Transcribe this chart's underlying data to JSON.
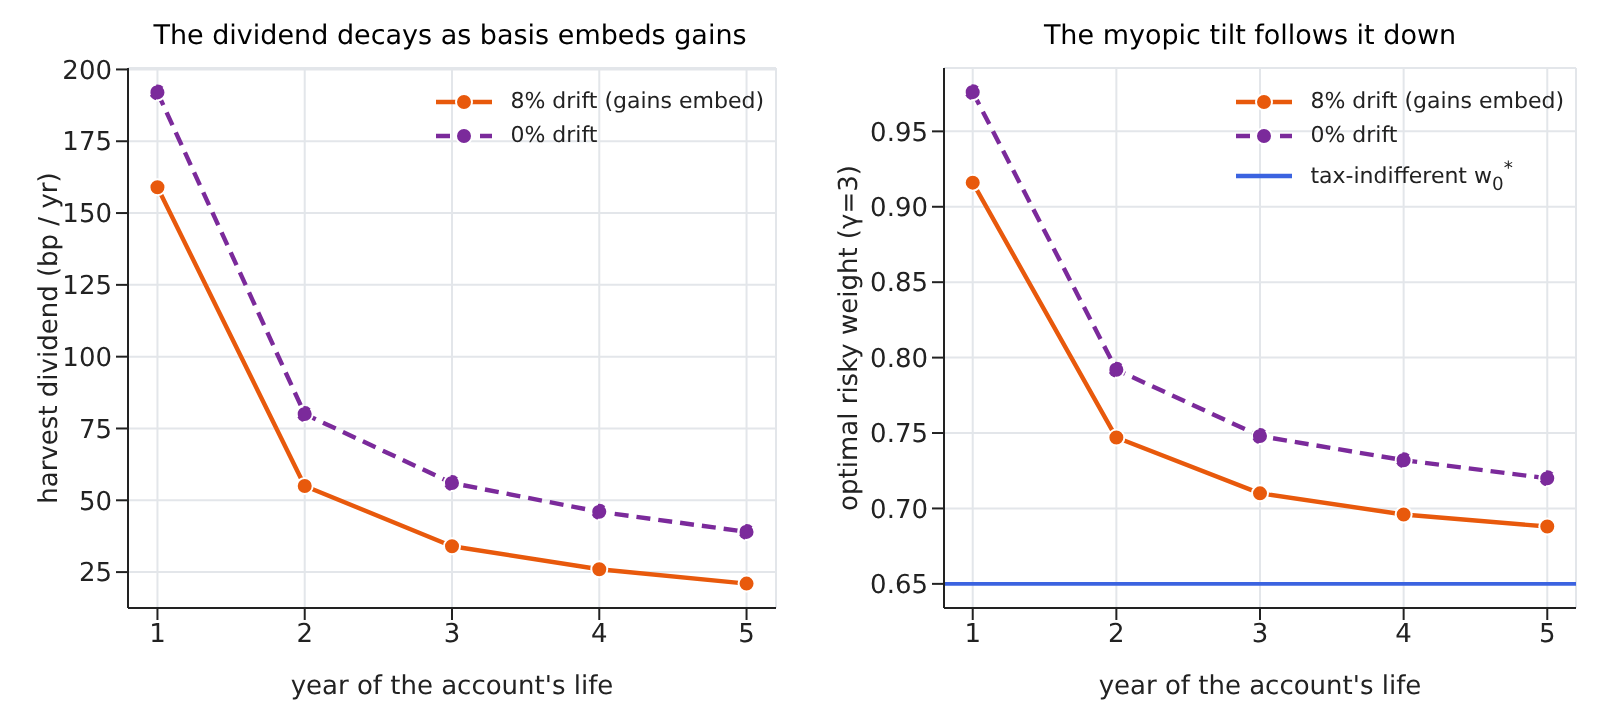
{
  "chart_data": [
    {
      "type": "line",
      "title": "The dividend decays as basis embeds gains",
      "xlabel": "year of the account's life",
      "ylabel": "harvest dividend (bp / yr)",
      "x": [
        1,
        2,
        3,
        4,
        5
      ],
      "xlim": [
        0.8,
        5.2
      ],
      "xticks": [
        1,
        2,
        3,
        4,
        5
      ],
      "ylim": [
        12.5,
        200.5
      ],
      "yticks": [
        25,
        50,
        75,
        100,
        125,
        150,
        175,
        200
      ],
      "grid": true,
      "legend": "top right",
      "marker": "circle",
      "series": [
        {
          "name": "8% drift (gains embed)",
          "color": "#e8590c",
          "line_style": "solid",
          "values": [
            159,
            55,
            34,
            26,
            21
          ]
        },
        {
          "name": "0% drift",
          "color": "#7b2a9b",
          "line_style": "dashed",
          "values": [
            192,
            80,
            56,
            46,
            39
          ]
        }
      ]
    },
    {
      "type": "line",
      "title": "The myopic tilt follows it down",
      "xlabel": "year of the account's life",
      "ylabel": "optimal risky weight (γ=3)",
      "x": [
        1,
        2,
        3,
        4,
        5
      ],
      "xlim": [
        0.8,
        5.2
      ],
      "xticks": [
        1,
        2,
        3,
        4,
        5
      ],
      "ylim": [
        0.634,
        0.992
      ],
      "yticks": [
        0.65,
        {
          "value": 0.7,
          "label": "0.70"
        },
        0.75,
        {
          "value": 0.8,
          "label": "0.80"
        },
        0.85,
        {
          "value": 0.9,
          "label": "0.90"
        },
        0.95
      ],
      "grid": true,
      "legend": "top right",
      "marker": "circle",
      "series": [
        {
          "name": "8% drift (gains embed)",
          "color": "#e8590c",
          "line_style": "solid",
          "values": [
            0.916,
            0.747,
            0.71,
            0.696,
            0.688
          ]
        },
        {
          "name": "0% drift",
          "color": "#7b2a9b",
          "line_style": "dashed",
          "values": [
            0.976,
            0.792,
            0.748,
            0.732,
            0.72
          ]
        }
      ],
      "ref_lines": [
        {
          "axis": "y",
          "value": 0.65,
          "label": "tax-indifferent w$_{0}$$^{*}$",
          "color": "#3b63e0"
        }
      ]
    }
  ]
}
